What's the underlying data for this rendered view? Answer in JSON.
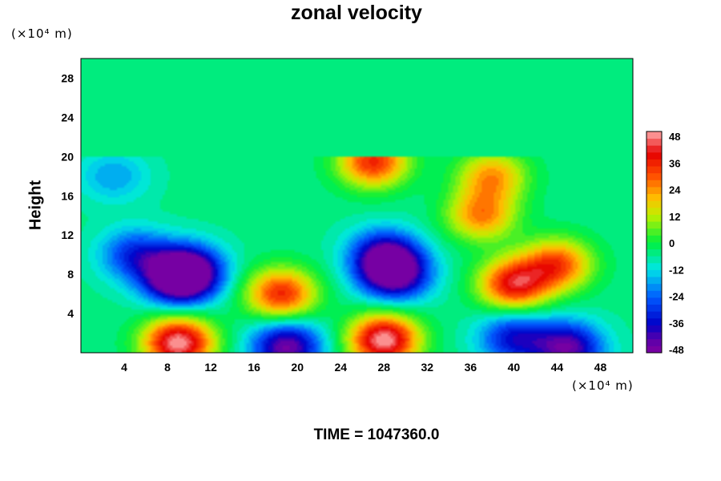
{
  "chart_data": {
    "type": "heatmap",
    "title": "zonal velocity",
    "ylabel": "Height",
    "y_unit": "(×10⁴ m)",
    "x_unit": "(×10⁴ m)",
    "footer": "TIME = 1047360.0",
    "xlim": [
      0,
      51
    ],
    "ylim": [
      0,
      30
    ],
    "x_ticks": [
      "4",
      "8",
      "12",
      "16",
      "20",
      "24",
      "28",
      "32",
      "36",
      "40",
      "44",
      "48"
    ],
    "y_ticks": [
      "4",
      "8",
      "12",
      "16",
      "20",
      "24",
      "28"
    ],
    "colorbar": {
      "range": [
        -48,
        48
      ],
      "ticks": [
        "48",
        "36",
        "24",
        "12",
        "0",
        "-12",
        "-24",
        "-36",
        "-48"
      ]
    },
    "features": [
      {
        "x": 9,
        "y": 7.5,
        "value": -48
      },
      {
        "x": 10,
        "y": 8.5,
        "value": -38
      },
      {
        "x": 5,
        "y": 10,
        "value": -30
      },
      {
        "x": 29,
        "y": 8,
        "value": -48
      },
      {
        "x": 28,
        "y": 10,
        "value": -38
      },
      {
        "x": 40,
        "y": 7,
        "value": 38
      },
      {
        "x": 44,
        "y": 9,
        "value": 30
      },
      {
        "x": 37,
        "y": 14,
        "value": 24
      },
      {
        "x": 18.5,
        "y": 6,
        "value": 34
      },
      {
        "x": 9,
        "y": 1,
        "value": 48
      },
      {
        "x": 28,
        "y": 1.3,
        "value": 48
      },
      {
        "x": 19,
        "y": 0.6,
        "value": -46
      },
      {
        "x": 45,
        "y": 0.5,
        "value": -44
      },
      {
        "x": 40,
        "y": 1.5,
        "value": -34
      },
      {
        "x": 3,
        "y": 18,
        "value": -18
      },
      {
        "x": 27,
        "y": 19.5,
        "value": 34
      },
      {
        "x": 38,
        "y": 18,
        "value": 22
      }
    ],
    "background_value": -5,
    "upper_layer_value": -4,
    "upper_layer_above_y": 20
  }
}
